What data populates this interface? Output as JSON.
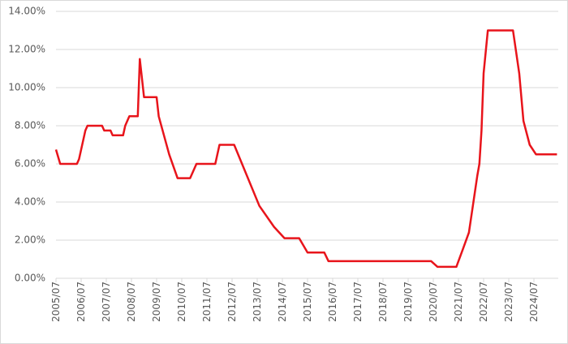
{
  "chart_data": {
    "type": "line",
    "x": [
      "2005/07",
      "2005/09",
      "2006/05",
      "2006/06",
      "2006/09",
      "2006/10",
      "2007/05",
      "2007/06",
      "2007/09",
      "2007/10",
      "2008/03",
      "2008/04",
      "2008/06",
      "2008/10",
      "2008/11",
      "2009/01",
      "2009/07",
      "2009/08",
      "2010/01",
      "2010/05",
      "2010/11",
      "2011/02",
      "2011/11",
      "2012/01",
      "2012/08",
      "2013/08",
      "2014/03",
      "2014/08",
      "2015/03",
      "2015/07",
      "2016/03",
      "2016/05",
      "2020/06",
      "2020/09",
      "2021/06",
      "2021/09",
      "2021/12",
      "2022/04",
      "2022/05",
      "2022/06",
      "2022/07",
      "2022/09",
      "2023/09",
      "2023/12",
      "2024/02",
      "2024/05",
      "2024/08",
      "2025/06"
    ],
    "series": [
      {
        "color": "#e8141b",
        "values": [
          6.75,
          6.0,
          6.0,
          6.25,
          7.75,
          8.0,
          8.0,
          7.75,
          7.75,
          7.5,
          7.5,
          8.0,
          8.5,
          8.5,
          11.5,
          9.5,
          9.5,
          8.5,
          6.5,
          5.25,
          5.25,
          6.0,
          6.0,
          7.0,
          7.0,
          3.8,
          2.7,
          2.1,
          2.1,
          1.35,
          1.35,
          0.9,
          0.9,
          0.6,
          0.6,
          1.5,
          2.4,
          5.4,
          6.0,
          7.75,
          10.75,
          13.0,
          13.0,
          10.75,
          8.25,
          7.0,
          6.5,
          6.5
        ]
      }
    ],
    "ylim": [
      0,
      14
    ],
    "yticks": [
      {
        "value": 0,
        "label": "0.00%"
      },
      {
        "value": 2,
        "label": "2.00%"
      },
      {
        "value": 4,
        "label": "4.00%"
      },
      {
        "value": 6,
        "label": "6.00%"
      },
      {
        "value": 8,
        "label": "8.00%"
      },
      {
        "value": 10,
        "label": "10.00%"
      },
      {
        "value": 12,
        "label": "12.00%"
      },
      {
        "value": 14,
        "label": "14.00%"
      }
    ],
    "xticks": [
      "2005/07",
      "2006/07",
      "2007/07",
      "2008/07",
      "2009/07",
      "2010/07",
      "2011/07",
      "2012/07",
      "2013/07",
      "2014/07",
      "2015/07",
      "2016/07",
      "2017/07",
      "2018/07",
      "2019/07",
      "2020/07",
      "2021/07",
      "2022/07",
      "2023/07",
      "2024/07"
    ],
    "grid": true
  }
}
